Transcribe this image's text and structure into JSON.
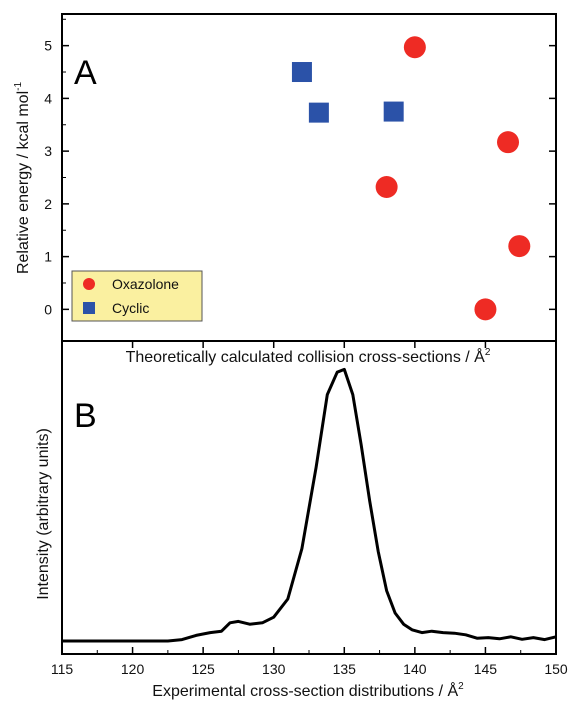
{
  "chart_data": [
    {
      "type": "scatter",
      "panel_label": "A",
      "ylabel": "Relative energy / kcal mol",
      "ylabel_superscript": "-1",
      "xlabel": "Theoretically calculated collision cross-sections / Å",
      "xlabel_superscript": "2",
      "xlim": [
        115,
        150
      ],
      "ylim": [
        -0.6,
        5.6
      ],
      "y_ticks": [
        0,
        1,
        2,
        3,
        4,
        5
      ],
      "x_tick_labels_shown": false,
      "legend_position": "bottom-left",
      "legend_background": "#faf0a0",
      "series": [
        {
          "name": "Oxazolone",
          "marker": "circle",
          "color": "#ee2b24",
          "points": [
            {
              "x": 140.0,
              "y": 4.97
            },
            {
              "x": 138.0,
              "y": 2.32
            },
            {
              "x": 146.6,
              "y": 3.17
            },
            {
              "x": 147.4,
              "y": 1.2
            },
            {
              "x": 145.0,
              "y": 0.0
            }
          ]
        },
        {
          "name": "Cyclic",
          "marker": "square",
          "color": "#2b52a8",
          "points": [
            {
              "x": 132.0,
              "y": 4.5
            },
            {
              "x": 133.2,
              "y": 3.73
            },
            {
              "x": 138.5,
              "y": 3.75
            }
          ]
        }
      ]
    },
    {
      "type": "line",
      "panel_label": "B",
      "ylabel": "Intensity (arbitrary units)",
      "xlabel": "Experimental cross-section distributions / Å",
      "xlabel_superscript": "2",
      "xlim": [
        115,
        150
      ],
      "ylim": [
        0,
        1.0
      ],
      "x_ticks": [
        115,
        120,
        125,
        130,
        135,
        140,
        145,
        150
      ],
      "y_tick_labels_shown": false,
      "series": [
        {
          "color": "#000000",
          "x": [
            115,
            118,
            121,
            122.5,
            123.5,
            124.5,
            125.5,
            126.3,
            126.9,
            127.5,
            128.3,
            129.2,
            130.0,
            131.0,
            132.0,
            133.0,
            133.8,
            134.5,
            135.0,
            135.6,
            136.2,
            136.8,
            137.4,
            138.0,
            138.6,
            139.2,
            139.8,
            140.5,
            141.2,
            142.0,
            142.8,
            143.6,
            144.4,
            145.2,
            146.0,
            146.8,
            147.6,
            148.4,
            149.2,
            150.0
          ],
          "y": [
            0.0,
            0.0,
            0.0,
            0.0,
            0.005,
            0.02,
            0.03,
            0.035,
            0.065,
            0.07,
            0.06,
            0.065,
            0.085,
            0.15,
            0.33,
            0.62,
            0.88,
            0.96,
            0.97,
            0.88,
            0.7,
            0.5,
            0.32,
            0.18,
            0.1,
            0.06,
            0.04,
            0.03,
            0.035,
            0.03,
            0.028,
            0.022,
            0.01,
            0.012,
            0.008,
            0.015,
            0.006,
            0.012,
            0.005,
            0.015
          ]
        }
      ]
    }
  ]
}
